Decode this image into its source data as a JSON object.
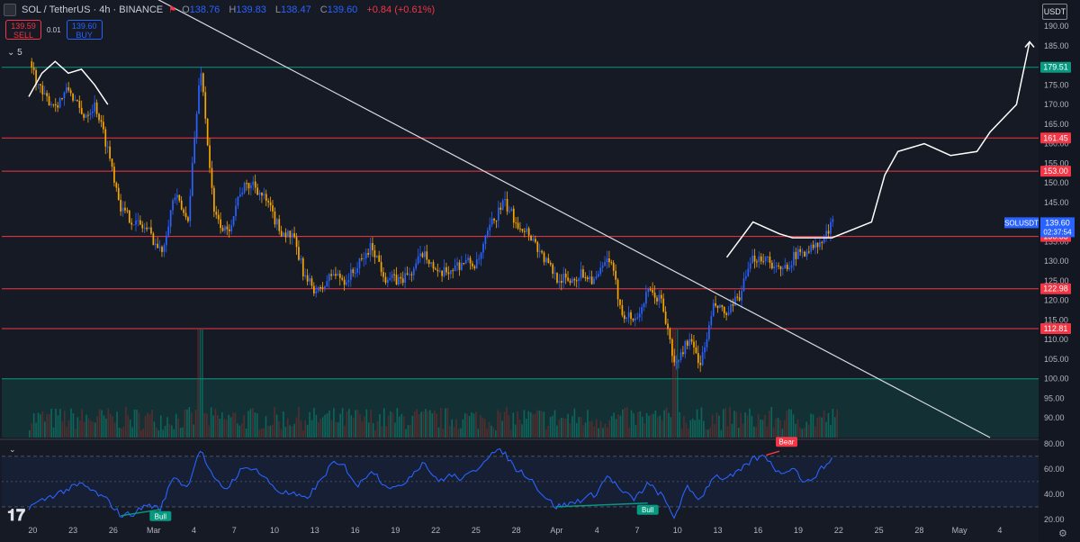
{
  "header": {
    "title": "SOL / TetherUS · 4h · BINANCE",
    "open_key": "O",
    "open": "138.76",
    "high_key": "H",
    "high": "139.83",
    "low_key": "L",
    "low": "138.47",
    "close_key": "C",
    "close": "139.60",
    "change": "+0.84 (+0.61%)",
    "flag_icon": "flag-icon"
  },
  "trade": {
    "sell_price": "139.59",
    "sell_label": "SELL",
    "spread": "0.01",
    "buy_price": "139.60",
    "buy_label": "BUY"
  },
  "indicator_collapse": "⌄ 5",
  "currency": "USDT",
  "logo": "𝟏𝟕",
  "colors": {
    "bg": "#161a25",
    "up": "#2962ff",
    "down": "#f7a600",
    "resistance": "#f23645",
    "support": "#089981",
    "trend": "#d8dbe2",
    "rsi": "#2962ff"
  },
  "chart_data": [
    {
      "type": "candlestick",
      "symbol": "SOLUSDT",
      "interval": "4h",
      "ylim": [
        85,
        193
      ],
      "yticks": [
        "190.00",
        "185.00",
        "180.00",
        "175.00",
        "170.00",
        "165.00",
        "160.00",
        "155.00",
        "150.00",
        "145.00",
        "140.00",
        "135.00",
        "130.00",
        "125.00",
        "120.00",
        "115.00",
        "110.00",
        "105.00",
        "100.00",
        "95.00",
        "90.00"
      ],
      "xticks": [
        "20",
        "23",
        "26",
        "Mar",
        "4",
        "7",
        "10",
        "13",
        "16",
        "19",
        "22",
        "25",
        "28",
        "Apr",
        "4",
        "7",
        "10",
        "13",
        "16",
        "19",
        "22",
        "25",
        "28",
        "May",
        "4"
      ],
      "close_path": [
        {
          "d": 0,
          "v": 181
        },
        {
          "d": 1,
          "v": 172
        },
        {
          "d": 2,
          "v": 170
        },
        {
          "d": 3,
          "v": 174
        },
        {
          "d": 4,
          "v": 167
        },
        {
          "d": 5,
          "v": 170
        },
        {
          "d": 6,
          "v": 158
        },
        {
          "d": 7,
          "v": 143
        },
        {
          "d": 8,
          "v": 140
        },
        {
          "d": 9,
          "v": 138
        },
        {
          "d": 10,
          "v": 132
        },
        {
          "d": 11,
          "v": 147
        },
        {
          "d": 12,
          "v": 140
        },
        {
          "d": 13,
          "v": 180
        },
        {
          "d": 14,
          "v": 142
        },
        {
          "d": 15,
          "v": 137
        },
        {
          "d": 16,
          "v": 148
        },
        {
          "d": 17,
          "v": 150
        },
        {
          "d": 18,
          "v": 145
        },
        {
          "d": 19,
          "v": 138
        },
        {
          "d": 20,
          "v": 136
        },
        {
          "d": 21,
          "v": 125
        },
        {
          "d": 22,
          "v": 122
        },
        {
          "d": 23,
          "v": 127
        },
        {
          "d": 24,
          "v": 125
        },
        {
          "d": 25,
          "v": 129
        },
        {
          "d": 26,
          "v": 134
        },
        {
          "d": 27,
          "v": 126
        },
        {
          "d": 28,
          "v": 125
        },
        {
          "d": 29,
          "v": 127
        },
        {
          "d": 30,
          "v": 133
        },
        {
          "d": 31,
          "v": 126
        },
        {
          "d": 32,
          "v": 128
        },
        {
          "d": 33,
          "v": 130
        },
        {
          "d": 34,
          "v": 129
        },
        {
          "d": 35,
          "v": 139
        },
        {
          "d": 36,
          "v": 145
        },
        {
          "d": 37,
          "v": 140
        },
        {
          "d": 38,
          "v": 137
        },
        {
          "d": 39,
          "v": 131
        },
        {
          "d": 40,
          "v": 126
        },
        {
          "d": 41,
          "v": 125
        },
        {
          "d": 42,
          "v": 127
        },
        {
          "d": 43,
          "v": 125
        },
        {
          "d": 44,
          "v": 131
        },
        {
          "d": 45,
          "v": 117
        },
        {
          "d": 46,
          "v": 115
        },
        {
          "d": 47,
          "v": 122
        },
        {
          "d": 48,
          "v": 120
        },
        {
          "d": 49,
          "v": 103
        },
        {
          "d": 50,
          "v": 110
        },
        {
          "d": 51,
          "v": 104
        },
        {
          "d": 52,
          "v": 119
        },
        {
          "d": 53,
          "v": 116
        },
        {
          "d": 54,
          "v": 122
        },
        {
          "d": 55,
          "v": 131
        },
        {
          "d": 56,
          "v": 131
        },
        {
          "d": 57,
          "v": 127
        },
        {
          "d": 58,
          "v": 131
        },
        {
          "d": 59,
          "v": 133
        },
        {
          "d": 60,
          "v": 134
        },
        {
          "d": 61,
          "v": 139.6
        }
      ],
      "volume_peaks": [
        {
          "d": 13,
          "v": "high"
        },
        {
          "d": 49,
          "v": "high"
        }
      ],
      "horizontal_levels": [
        {
          "label": "179.51",
          "value": 179.51,
          "color": "#089981"
        },
        {
          "label": "161.45",
          "value": 161.45,
          "color": "#f23645"
        },
        {
          "label": "153.00",
          "value": 153.0,
          "color": "#f23645"
        },
        {
          "label": "136.33",
          "value": 136.33,
          "color": "#f23645"
        },
        {
          "label": "122.98",
          "value": 122.98,
          "color": "#f23645"
        },
        {
          "label": "112.81",
          "value": 112.81,
          "color": "#f23645"
        },
        {
          "value": 100.0,
          "color": "#089981",
          "zone": "below"
        }
      ],
      "trendline": [
        {
          "d": 8,
          "v": 200
        },
        {
          "d": 73,
          "v": 85
        }
      ],
      "projection_path": [
        {
          "d": 53,
          "v": 131
        },
        {
          "d": 55,
          "v": 140
        },
        {
          "d": 57,
          "v": 137
        },
        {
          "d": 58,
          "v": 136
        },
        {
          "d": 61,
          "v": 136
        },
        {
          "d": 64,
          "v": 140
        },
        {
          "d": 65,
          "v": 152
        },
        {
          "d": 66,
          "v": 158
        },
        {
          "d": 68,
          "v": 160
        },
        {
          "d": 70,
          "v": 157
        },
        {
          "d": 72,
          "v": 158
        },
        {
          "d": 73,
          "v": 163
        },
        {
          "d": 75,
          "v": 170
        },
        {
          "d": 76,
          "v": 186
        }
      ],
      "early_sketch": [
        {
          "d": 0,
          "v": 172
        },
        {
          "d": 1,
          "v": 178
        },
        {
          "d": 2,
          "v": 181
        },
        {
          "d": 3,
          "v": 178
        },
        {
          "d": 4,
          "v": 179
        },
        {
          "d": 5,
          "v": 175
        },
        {
          "d": 6,
          "v": 170
        }
      ],
      "last_price": {
        "symbol": "SOLUSDT",
        "price": "139.60",
        "countdown": "02:37:54"
      }
    },
    {
      "type": "line",
      "name": "RSI",
      "ylim": [
        15,
        82
      ],
      "yticks": [
        "80.00",
        "60.00",
        "40.00",
        "20.00"
      ],
      "bands": [
        70,
        50,
        30
      ],
      "values": [
        {
          "d": 0,
          "v": 30
        },
        {
          "d": 2,
          "v": 40
        },
        {
          "d": 4,
          "v": 48
        },
        {
          "d": 6,
          "v": 35
        },
        {
          "d": 7,
          "v": 23
        },
        {
          "d": 8,
          "v": 25
        },
        {
          "d": 9,
          "v": 32
        },
        {
          "d": 10,
          "v": 28
        },
        {
          "d": 11,
          "v": 55
        },
        {
          "d": 12,
          "v": 45
        },
        {
          "d": 13,
          "v": 76
        },
        {
          "d": 14,
          "v": 52
        },
        {
          "d": 15,
          "v": 44
        },
        {
          "d": 16,
          "v": 58
        },
        {
          "d": 17,
          "v": 62
        },
        {
          "d": 18,
          "v": 52
        },
        {
          "d": 19,
          "v": 42
        },
        {
          "d": 20,
          "v": 40
        },
        {
          "d": 21,
          "v": 36
        },
        {
          "d": 22,
          "v": 48
        },
        {
          "d": 23,
          "v": 64
        },
        {
          "d": 24,
          "v": 62
        },
        {
          "d": 25,
          "v": 46
        },
        {
          "d": 26,
          "v": 60
        },
        {
          "d": 27,
          "v": 48
        },
        {
          "d": 28,
          "v": 44
        },
        {
          "d": 29,
          "v": 55
        },
        {
          "d": 30,
          "v": 66
        },
        {
          "d": 31,
          "v": 50
        },
        {
          "d": 32,
          "v": 55
        },
        {
          "d": 33,
          "v": 52
        },
        {
          "d": 34,
          "v": 60
        },
        {
          "d": 35,
          "v": 72
        },
        {
          "d": 36,
          "v": 74
        },
        {
          "d": 37,
          "v": 60
        },
        {
          "d": 38,
          "v": 54
        },
        {
          "d": 39,
          "v": 40
        },
        {
          "d": 40,
          "v": 30
        },
        {
          "d": 41,
          "v": 32
        },
        {
          "d": 42,
          "v": 36
        },
        {
          "d": 43,
          "v": 40
        },
        {
          "d": 44,
          "v": 55
        },
        {
          "d": 45,
          "v": 42
        },
        {
          "d": 46,
          "v": 36
        },
        {
          "d": 47,
          "v": 48
        },
        {
          "d": 48,
          "v": 40
        },
        {
          "d": 49,
          "v": 22
        },
        {
          "d": 50,
          "v": 45
        },
        {
          "d": 51,
          "v": 36
        },
        {
          "d": 52,
          "v": 55
        },
        {
          "d": 53,
          "v": 52
        },
        {
          "d": 54,
          "v": 58
        },
        {
          "d": 55,
          "v": 68
        },
        {
          "d": 56,
          "v": 70
        },
        {
          "d": 57,
          "v": 56
        },
        {
          "d": 58,
          "v": 62
        },
        {
          "d": 59,
          "v": 48
        },
        {
          "d": 60,
          "v": 58
        },
        {
          "d": 61,
          "v": 68
        }
      ],
      "divergences": [
        {
          "label": "Bull",
          "color": "#089981",
          "from": {
            "d": 7,
            "v": 23
          },
          "to": {
            "d": 10,
            "v": 28
          }
        },
        {
          "label": "Bull",
          "color": "#089981",
          "from": {
            "d": 40,
            "v": 30
          },
          "to": {
            "d": 47,
            "v": 33
          }
        },
        {
          "label": "Bear",
          "color": "#f23645",
          "from": {
            "d": 56,
            "v": 71
          },
          "to": {
            "d": 57,
            "v": 74
          }
        }
      ]
    }
  ]
}
